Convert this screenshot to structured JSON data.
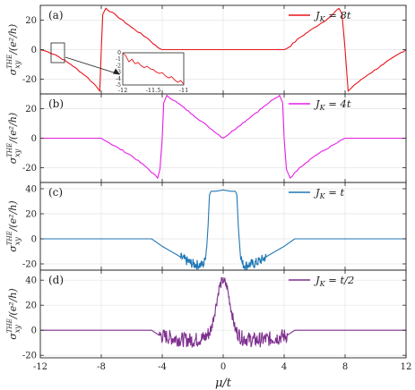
{
  "colors": {
    "a": "#e8141c",
    "b": "#e61ee6",
    "c": "#1f77b4",
    "d": "#7e2f8e"
  },
  "chart_data": {
    "type": "line",
    "xlabel": "μ/t",
    "ylabel": "σ_xy^THE/(e²/h)",
    "xlim": [
      -12,
      12
    ],
    "xticks": [
      -12,
      -8,
      -4,
      0,
      4,
      8,
      12
    ],
    "grid": true,
    "panels": [
      {
        "tag": "(a)",
        "legend": "J_K = 8t",
        "legend_position": "top-right",
        "ylim": [
          -30,
          30
        ],
        "yticks": [
          -20,
          0,
          20
        ],
        "series": {
          "x": [
            -12,
            -11.5,
            -11,
            -10,
            -9,
            -8.4,
            -8.1,
            -8.0,
            -7.9,
            -7.7,
            -7,
            -6,
            -5,
            -4.3,
            -4,
            -2,
            0,
            2,
            4,
            4.3,
            5,
            6,
            7,
            7.6,
            7.8,
            8.0,
            8.2,
            8.6,
            9.5,
            10.5,
            11.5,
            12
          ],
          "y": [
            0,
            -1.5,
            -3.5,
            -10,
            -18,
            -24,
            -28,
            0,
            24,
            28,
            23,
            15,
            8,
            1.5,
            0,
            0,
            0,
            0,
            0,
            1.5,
            8,
            15,
            22,
            28,
            24,
            0,
            -28,
            -24,
            -17,
            -10,
            -3,
            0
          ]
        },
        "inset": {
          "xlim": [
            -12,
            -11
          ],
          "xticks": [
            "-12",
            "-11.5",
            "-11"
          ],
          "ylim": [
            -5,
            0
          ],
          "yticks": [
            "0",
            "-1",
            "-2",
            "-3",
            "-4",
            "-5"
          ],
          "x": [
            -12,
            -11.95,
            -11.9,
            -11.85,
            -11.8,
            -11.75,
            -11.7,
            -11.65,
            -11.6,
            -11.55,
            -11.5,
            -11.45,
            -11.4,
            -11.35,
            -11.3,
            -11.25,
            -11.2,
            -11.15,
            -11.1,
            -11.05,
            -11
          ],
          "y": [
            0,
            -0.5,
            -1.4,
            -1.0,
            -1.7,
            -1.5,
            -2.0,
            -2.3,
            -2.1,
            -2.5,
            -2.6,
            -3.0,
            -3.2,
            -3.1,
            -3.6,
            -3.9,
            -3.7,
            -4.2,
            -4.6,
            -4.3,
            -4.9
          ]
        }
      },
      {
        "tag": "(b)",
        "legend": "J_K = 4t",
        "legend_position": "top-right",
        "ylim": [
          -30,
          30
        ],
        "yticks": [
          -20,
          0,
          20
        ],
        "series": {
          "x": [
            -12,
            -8,
            -7.5,
            -6,
            -5,
            -4.3,
            -4.15,
            -4.0,
            -3.9,
            -3.7,
            -3,
            -2,
            -1,
            0,
            1,
            2,
            3,
            3.7,
            3.9,
            4.0,
            4.15,
            4.4,
            5,
            6,
            7.5,
            8,
            12
          ],
          "y": [
            0,
            0,
            -3,
            -12,
            -20,
            -27,
            -21,
            0,
            24,
            29,
            24,
            16,
            8,
            0,
            8,
            16,
            24,
            29,
            24,
            0,
            -21,
            -27,
            -20,
            -12,
            -3,
            0,
            0
          ]
        }
      },
      {
        "tag": "(c)",
        "legend": "J_K = t",
        "legend_position": "top-right",
        "ylim": [
          -25,
          45
        ],
        "yticks": [
          -20,
          0,
          20,
          40
        ],
        "series": {
          "x": [
            -12,
            -4.7,
            -4,
            -3,
            -2.5,
            -2,
            -1.5,
            -1.25,
            -1.1,
            -1.0,
            -0.9,
            -0.8,
            -0.5,
            0,
            0.5,
            0.8,
            0.9,
            1.0,
            1.1,
            1.25,
            1.5,
            2,
            2.5,
            3,
            4,
            4.7,
            12
          ],
          "y": [
            0,
            0,
            -6,
            -13,
            -17,
            -20,
            -21,
            -20,
            -8,
            8,
            35,
            38,
            38,
            39,
            38,
            38,
            35,
            8,
            -8,
            -20,
            -21,
            -20,
            -17,
            -13,
            -6,
            0,
            0
          ]
        },
        "noise": [
          {
            "from": -2.8,
            "to": -1.05,
            "amp": 4
          },
          {
            "from": 1.05,
            "to": 2.8,
            "amp": 4
          }
        ]
      },
      {
        "tag": "(d)",
        "legend": "J_K = t/2",
        "legend_position": "top-right",
        "ylim": [
          -22,
          48
        ],
        "yticks": [
          -20,
          0,
          20,
          40
        ],
        "series": {
          "x": [
            -12,
            -4.7,
            -4.2,
            -3,
            -2,
            -1.2,
            -0.8,
            -0.5,
            -0.25,
            0,
            0.25,
            0.5,
            0.8,
            1.2,
            2,
            3,
            4.2,
            4.7,
            12
          ],
          "y": [
            0,
            0,
            -4,
            -7,
            -8,
            -6,
            0,
            18,
            35,
            40,
            35,
            18,
            0,
            -6,
            -8,
            -7,
            -4,
            0,
            0
          ]
        },
        "noise": [
          {
            "from": -4.2,
            "to": -0.8,
            "amp": 6
          },
          {
            "from": -0.8,
            "to": 0.8,
            "amp": 4
          },
          {
            "from": 0.8,
            "to": 4.2,
            "amp": 6
          }
        ]
      }
    ]
  }
}
